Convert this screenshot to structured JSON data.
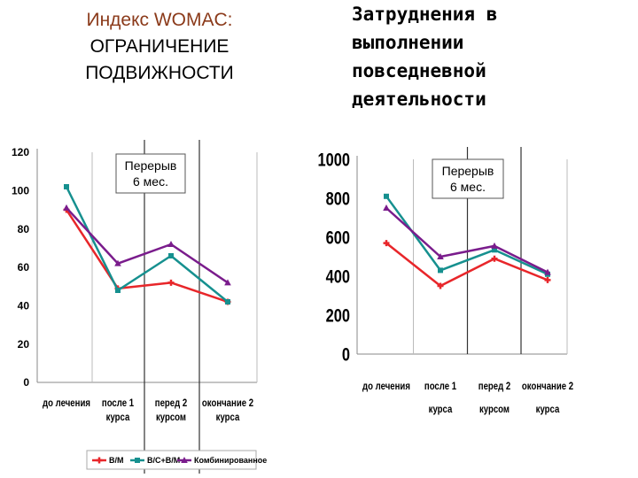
{
  "header": {
    "left_line1": "Индекс WOMAC:",
    "left_line2": "ОГРАНИЧЕНИЕ",
    "left_line3": "ПОДВИЖНОСТИ",
    "right_line1": "Затруднения в",
    "right_line2": "выполнении",
    "right_line3": "повседневной",
    "right_line4": "деятельности"
  },
  "colors": {
    "red": "#e8262a",
    "teal": "#16908f",
    "purple": "#7a1c8c"
  },
  "chart_data": [
    {
      "type": "line",
      "categories": [
        "до лечения",
        "после 1 курса",
        "перед 2 курсом",
        "окончание 2 курса"
      ],
      "ylim": [
        0,
        120
      ],
      "yticks": [
        0,
        20,
        40,
        60,
        80,
        100,
        120
      ],
      "annotation": "Перерыв 6 мес.",
      "legend": "bottom",
      "grid": "vertical",
      "series": [
        {
          "name": "В/М",
          "color": "#e8262a",
          "values": [
            90,
            49,
            52,
            42
          ]
        },
        {
          "name": "В/С+В/М",
          "color": "#16908f",
          "values": [
            102,
            48,
            66,
            42
          ]
        },
        {
          "name": "Комбинированное",
          "color": "#7a1c8c",
          "values": [
            91,
            62,
            72,
            52
          ]
        }
      ]
    },
    {
      "type": "line",
      "categories": [
        "до лечения",
        "после 1 курса",
        "перед 2 курсом",
        "окончание 2 курса"
      ],
      "ylim": [
        0,
        1000
      ],
      "yticks": [
        0,
        200,
        400,
        600,
        800,
        1000
      ],
      "annotation": "Перерыв 6 мес.",
      "grid": "vertical",
      "series": [
        {
          "name": "В/М",
          "color": "#e8262a",
          "values": [
            570,
            350,
            490,
            380
          ]
        },
        {
          "name": "В/С+В/М",
          "color": "#16908f",
          "values": [
            810,
            430,
            535,
            410
          ]
        },
        {
          "name": "Комбинированное",
          "color": "#7a1c8c",
          "values": [
            750,
            500,
            555,
            420
          ]
        }
      ]
    }
  ]
}
